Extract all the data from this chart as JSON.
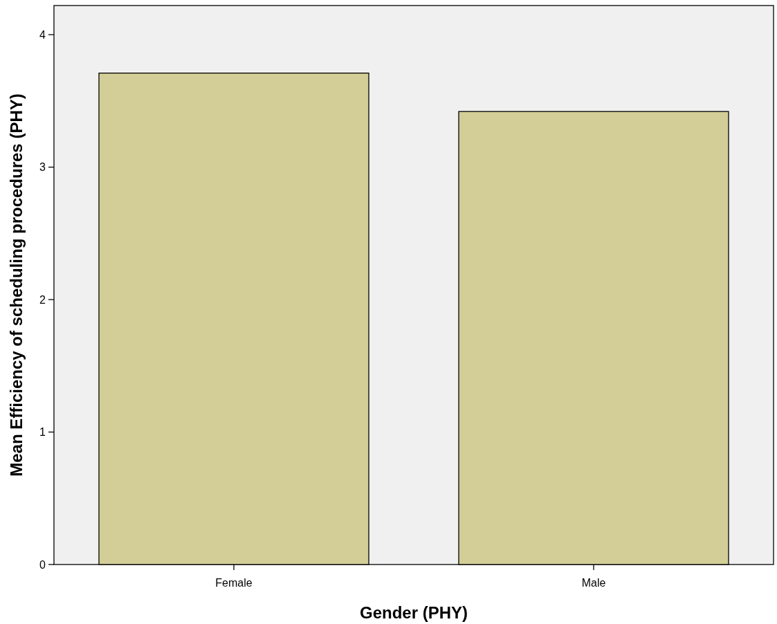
{
  "chart_data": {
    "type": "bar",
    "xlabel": "Gender (PHY)",
    "ylabel": "Mean Efficiency of scheduling procedures (PHY)",
    "categories": [
      "Female",
      "Male"
    ],
    "values": [
      3.71,
      3.42
    ],
    "color": "#d3ce97",
    "ylim": [
      0,
      4.22
    ],
    "yticks": [
      0,
      1,
      2,
      3,
      4
    ]
  }
}
